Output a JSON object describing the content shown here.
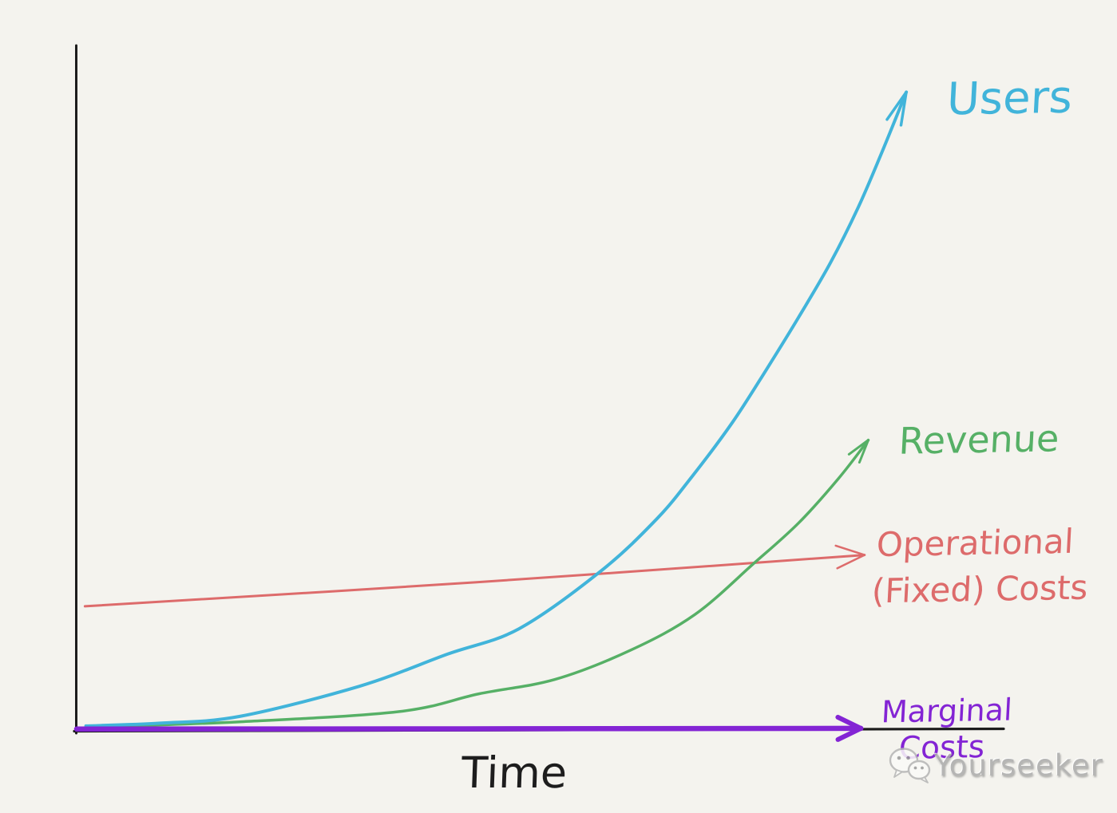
{
  "page": {
    "background_color": "#f4f3ee",
    "axis_color": "#1c1c1c"
  },
  "labels": {
    "users": "Users",
    "revenue": "Revenue",
    "op_line1": "Operational",
    "op_line2": "(Fixed) Costs",
    "marginal_line1": "Marginal",
    "marginal_line2": "Costs",
    "time": "Time"
  },
  "watermark": {
    "text": "Yourseeker",
    "icon": "wechat-icon",
    "color": "#ababab"
  },
  "chart_data": {
    "type": "line",
    "title": "",
    "xlabel": "Time",
    "ylabel": "",
    "grid": false,
    "legend_position": "inline-right",
    "axis_color": "#1c1c1c",
    "x_range": [
      0,
      1
    ],
    "ylim": [
      0,
      100
    ],
    "x_axis_ticks": [],
    "y_axis_ticks": [],
    "series": [
      {
        "name": "Users",
        "color": "#41b4da",
        "stroke_width": 4,
        "arrow": {
          "length": 42,
          "spread_deg": 13
        },
        "points": [
          [
            0.01,
            0.6
          ],
          [
            0.09,
            1.0
          ],
          [
            0.176,
            2.0
          ],
          [
            0.305,
            6.4
          ],
          [
            0.4,
            11.1
          ],
          [
            0.477,
            14.8
          ],
          [
            0.566,
            23.3
          ],
          [
            0.626,
            30.9
          ],
          [
            0.664,
            37.1
          ],
          [
            0.707,
            44.9
          ],
          [
            0.744,
            52.7
          ],
          [
            0.779,
            60.4
          ],
          [
            0.813,
            68.3
          ],
          [
            0.843,
            76.4
          ],
          [
            0.869,
            84.6
          ],
          [
            0.895,
            93.3
          ]
        ]
      },
      {
        "name": "Revenue",
        "color": "#56b066",
        "stroke_width": 3.5,
        "arrow": {
          "length": 30,
          "spread_deg": 16
        },
        "points": [
          [
            0.012,
            0.4
          ],
          [
            0.176,
            1.2
          ],
          [
            0.348,
            2.7
          ],
          [
            0.434,
            5.3
          ],
          [
            0.516,
            7.4
          ],
          [
            0.598,
            11.7
          ],
          [
            0.667,
            16.9
          ],
          [
            0.73,
            24.3
          ],
          [
            0.779,
            30.3
          ],
          [
            0.822,
            36.8
          ],
          [
            0.854,
            42.4
          ]
        ]
      },
      {
        "name": "Operational (Fixed) Costs",
        "color": "#dd6b6b",
        "stroke_width": 3,
        "arrow": {
          "length": 38,
          "spread_deg": 22
        },
        "points": [
          [
            0.009,
            18.1
          ],
          [
            0.43,
            21.6
          ],
          [
            0.85,
            25.6
          ]
        ]
      },
      {
        "name": "Marginal Costs",
        "color": "#8324d4",
        "stroke_width": 6.5,
        "arrow": {
          "length": 32,
          "spread_deg": 26
        },
        "points": [
          [
            0.0,
            0.15
          ],
          [
            0.42,
            0.18
          ],
          [
            0.846,
            0.25
          ]
        ]
      }
    ]
  }
}
